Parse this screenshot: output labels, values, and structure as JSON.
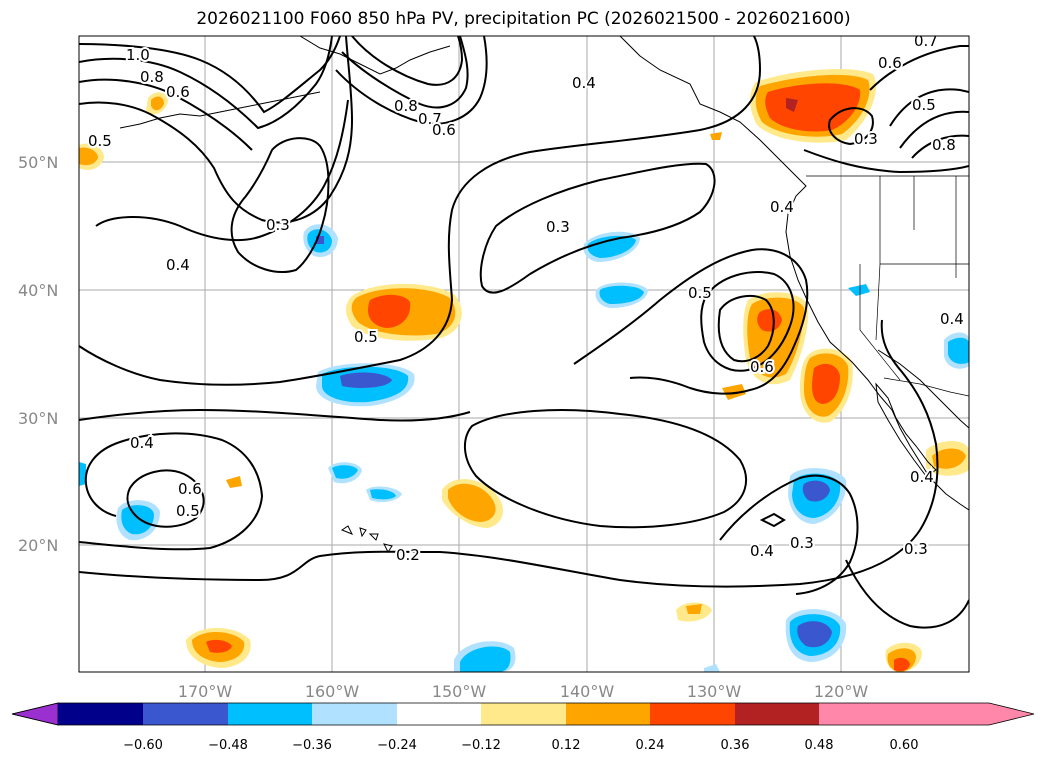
{
  "title": "2026021100 F060 850 hPa PV, precipitation PC (2026021500 - 2026021600)",
  "map": {
    "lon_labels": [
      "170°W",
      "160°W",
      "150°W",
      "140°W",
      "130°W",
      "120°W"
    ],
    "lat_labels": [
      "50°N",
      "40°N",
      "30°N",
      "20°N"
    ],
    "contour_labels": [
      "1.0",
      "0.8",
      "0.6",
      "0.5",
      "0.8",
      "0.7",
      "0.6",
      "0.4",
      "0.6",
      "0.5",
      "0.7",
      "0.8",
      "0.3",
      "0.4",
      "0.3",
      "0.4",
      "0.3",
      "0.5",
      "0.5",
      "0.6",
      "0.4",
      "0.6",
      "0.5",
      "0.2",
      "0.4",
      "0.3",
      "0.3",
      "0.4",
      "0.4"
    ]
  },
  "colorbar": {
    "tick_labels": [
      "−0.60",
      "−0.48",
      "−0.36",
      "−0.24",
      "−0.12",
      "0.12",
      "0.24",
      "0.36",
      "0.48",
      "0.60"
    ],
    "colors": [
      "#9b30d0",
      "#00008b",
      "#3a57cf",
      "#00bfff",
      "#b0e2ff",
      "#ffffff",
      "#ffe98a",
      "#ffa500",
      "#ff4500",
      "#b22222",
      "#ff88aa"
    ]
  },
  "colors": {
    "grid": "#aaaaaa",
    "contour": "#000000",
    "tick_label": "#888888"
  }
}
